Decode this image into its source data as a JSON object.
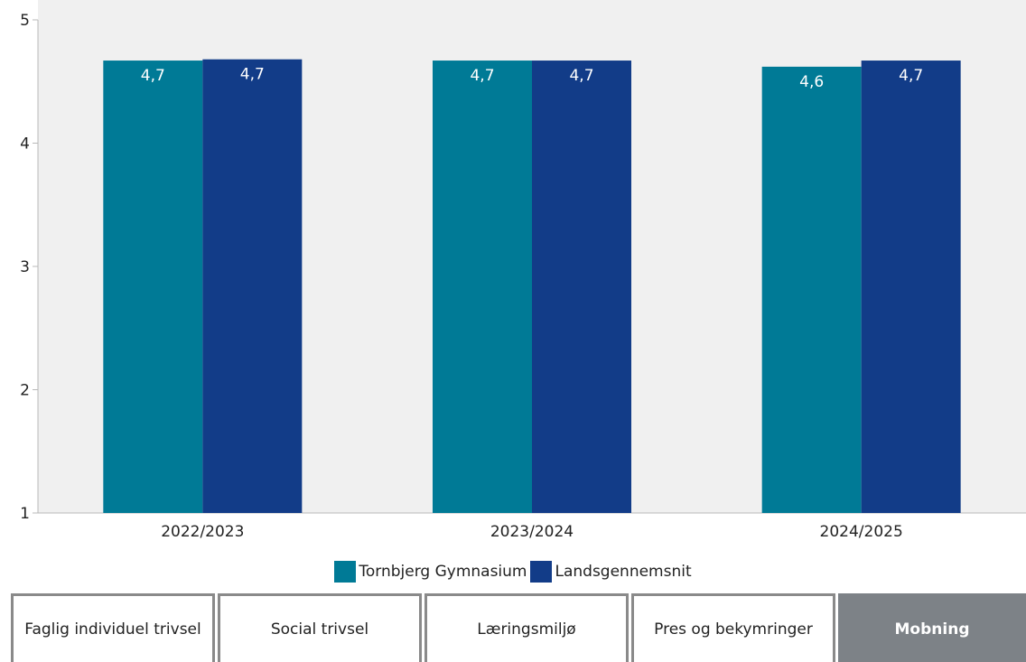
{
  "chart_data": {
    "type": "bar",
    "categories": [
      "2022/2023",
      "2023/2024",
      "2024/2025"
    ],
    "series": [
      {
        "name": "Tornbjerg Gymnasium",
        "color": "#007a96",
        "values": [
          4.67,
          4.67,
          4.62
        ],
        "labels": [
          "4,7",
          "4,7",
          "4,6"
        ]
      },
      {
        "name": "Landsgennemsnit",
        "color": "#123c88",
        "values": [
          4.68,
          4.67,
          4.67
        ],
        "labels": [
          "4,7",
          "4,7",
          "4,7"
        ]
      }
    ],
    "yticks": [
      "1",
      "2",
      "3",
      "4",
      "5"
    ],
    "ylim": [
      1,
      5
    ],
    "xlabel": "",
    "ylabel": "",
    "grid": false,
    "legend_position": "bottom",
    "background": "#f0f0f0"
  },
  "tabs": [
    {
      "label": "Faglig individuel trivsel",
      "active": false
    },
    {
      "label": "Social trivsel",
      "active": false
    },
    {
      "label": "Læringsmiljø",
      "active": false
    },
    {
      "label": "Pres og bekymringer",
      "active": false
    },
    {
      "label": "Mobning",
      "active": true
    }
  ]
}
